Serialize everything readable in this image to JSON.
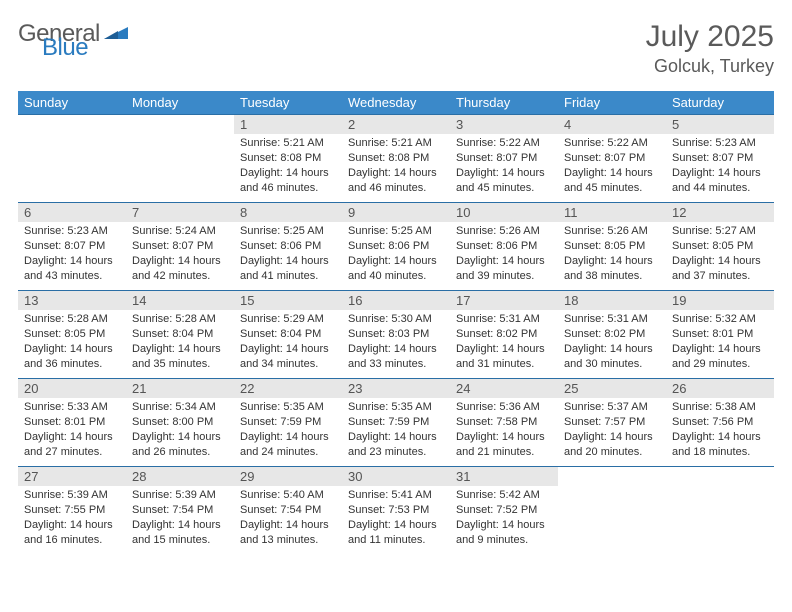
{
  "brand": {
    "first": "General",
    "second": "Blue"
  },
  "title": "July 2025",
  "location": "Golcuk, Turkey",
  "colors": {
    "header_bg": "#3b89c9",
    "header_text": "#ffffff",
    "row_border": "#2a6ea5",
    "daynum_bg": "#e7e7e7",
    "text": "#333333",
    "muted": "#5a5a5a",
    "logo_blue": "#2a7bbf"
  },
  "weekdays": [
    "Sunday",
    "Monday",
    "Tuesday",
    "Wednesday",
    "Thursday",
    "Friday",
    "Saturday"
  ],
  "weeks": [
    [
      null,
      null,
      {
        "day": "1",
        "sunrise": "5:21 AM",
        "sunset": "8:08 PM",
        "daylight": "14 hours and 46 minutes."
      },
      {
        "day": "2",
        "sunrise": "5:21 AM",
        "sunset": "8:08 PM",
        "daylight": "14 hours and 46 minutes."
      },
      {
        "day": "3",
        "sunrise": "5:22 AM",
        "sunset": "8:07 PM",
        "daylight": "14 hours and 45 minutes."
      },
      {
        "day": "4",
        "sunrise": "5:22 AM",
        "sunset": "8:07 PM",
        "daylight": "14 hours and 45 minutes."
      },
      {
        "day": "5",
        "sunrise": "5:23 AM",
        "sunset": "8:07 PM",
        "daylight": "14 hours and 44 minutes."
      }
    ],
    [
      {
        "day": "6",
        "sunrise": "5:23 AM",
        "sunset": "8:07 PM",
        "daylight": "14 hours and 43 minutes."
      },
      {
        "day": "7",
        "sunrise": "5:24 AM",
        "sunset": "8:07 PM",
        "daylight": "14 hours and 42 minutes."
      },
      {
        "day": "8",
        "sunrise": "5:25 AM",
        "sunset": "8:06 PM",
        "daylight": "14 hours and 41 minutes."
      },
      {
        "day": "9",
        "sunrise": "5:25 AM",
        "sunset": "8:06 PM",
        "daylight": "14 hours and 40 minutes."
      },
      {
        "day": "10",
        "sunrise": "5:26 AM",
        "sunset": "8:06 PM",
        "daylight": "14 hours and 39 minutes."
      },
      {
        "day": "11",
        "sunrise": "5:26 AM",
        "sunset": "8:05 PM",
        "daylight": "14 hours and 38 minutes."
      },
      {
        "day": "12",
        "sunrise": "5:27 AM",
        "sunset": "8:05 PM",
        "daylight": "14 hours and 37 minutes."
      }
    ],
    [
      {
        "day": "13",
        "sunrise": "5:28 AM",
        "sunset": "8:05 PM",
        "daylight": "14 hours and 36 minutes."
      },
      {
        "day": "14",
        "sunrise": "5:28 AM",
        "sunset": "8:04 PM",
        "daylight": "14 hours and 35 minutes."
      },
      {
        "day": "15",
        "sunrise": "5:29 AM",
        "sunset": "8:04 PM",
        "daylight": "14 hours and 34 minutes."
      },
      {
        "day": "16",
        "sunrise": "5:30 AM",
        "sunset": "8:03 PM",
        "daylight": "14 hours and 33 minutes."
      },
      {
        "day": "17",
        "sunrise": "5:31 AM",
        "sunset": "8:02 PM",
        "daylight": "14 hours and 31 minutes."
      },
      {
        "day": "18",
        "sunrise": "5:31 AM",
        "sunset": "8:02 PM",
        "daylight": "14 hours and 30 minutes."
      },
      {
        "day": "19",
        "sunrise": "5:32 AM",
        "sunset": "8:01 PM",
        "daylight": "14 hours and 29 minutes."
      }
    ],
    [
      {
        "day": "20",
        "sunrise": "5:33 AM",
        "sunset": "8:01 PM",
        "daylight": "14 hours and 27 minutes."
      },
      {
        "day": "21",
        "sunrise": "5:34 AM",
        "sunset": "8:00 PM",
        "daylight": "14 hours and 26 minutes."
      },
      {
        "day": "22",
        "sunrise": "5:35 AM",
        "sunset": "7:59 PM",
        "daylight": "14 hours and 24 minutes."
      },
      {
        "day": "23",
        "sunrise": "5:35 AM",
        "sunset": "7:59 PM",
        "daylight": "14 hours and 23 minutes."
      },
      {
        "day": "24",
        "sunrise": "5:36 AM",
        "sunset": "7:58 PM",
        "daylight": "14 hours and 21 minutes."
      },
      {
        "day": "25",
        "sunrise": "5:37 AM",
        "sunset": "7:57 PM",
        "daylight": "14 hours and 20 minutes."
      },
      {
        "day": "26",
        "sunrise": "5:38 AM",
        "sunset": "7:56 PM",
        "daylight": "14 hours and 18 minutes."
      }
    ],
    [
      {
        "day": "27",
        "sunrise": "5:39 AM",
        "sunset": "7:55 PM",
        "daylight": "14 hours and 16 minutes."
      },
      {
        "day": "28",
        "sunrise": "5:39 AM",
        "sunset": "7:54 PM",
        "daylight": "14 hours and 15 minutes."
      },
      {
        "day": "29",
        "sunrise": "5:40 AM",
        "sunset": "7:54 PM",
        "daylight": "14 hours and 13 minutes."
      },
      {
        "day": "30",
        "sunrise": "5:41 AM",
        "sunset": "7:53 PM",
        "daylight": "14 hours and 11 minutes."
      },
      {
        "day": "31",
        "sunrise": "5:42 AM",
        "sunset": "7:52 PM",
        "daylight": "14 hours and 9 minutes."
      },
      null,
      null
    ]
  ],
  "labels": {
    "sunrise": "Sunrise: ",
    "sunset": "Sunset: ",
    "daylight": "Daylight: "
  }
}
